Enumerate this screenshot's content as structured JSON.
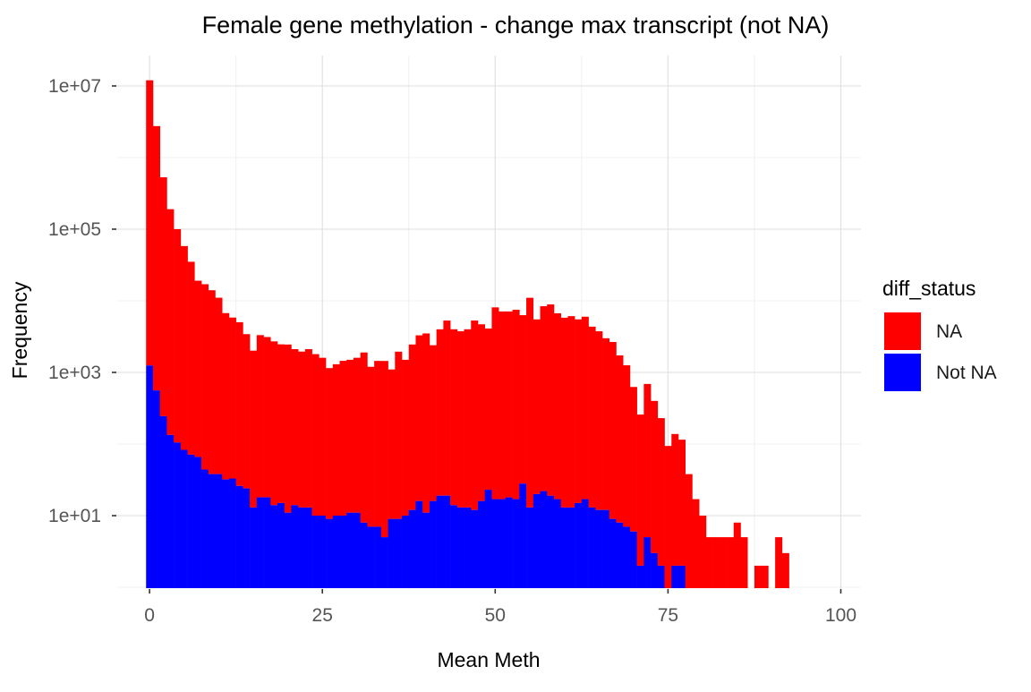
{
  "title": "Female gene methylation - change max transcript (not NA)",
  "axes": {
    "xlabel": "Mean Meth",
    "ylabel": "Frequency",
    "x_tick_labels": [
      "0",
      "25",
      "50",
      "75",
      "100"
    ],
    "y_tick_labels": [
      "1e+01",
      "1e+03",
      "1e+05",
      "1e+07"
    ]
  },
  "legend": {
    "title": "diff_status",
    "items": [
      {
        "label": "NA",
        "color": "#FF0000",
        "swatch_icon": "red-square-swatch"
      },
      {
        "label": "Not NA",
        "color": "#0000FF",
        "swatch_icon": "blue-square-swatch"
      }
    ]
  },
  "colors": {
    "na": "#FF0000",
    "not_na": "#0000FF",
    "grid_major": "#E3E3E3",
    "grid_minor": "#F0F0F0",
    "tick": "#333333",
    "tick_label": "#555555",
    "axis_title": "#000000",
    "plot_title": "#000000",
    "background": "#FFFFFF"
  },
  "chart_data": {
    "type": "bar",
    "subtype": "stacked-histogram",
    "title": "Female gene methylation - change max transcript (not NA)",
    "xlabel": "Mean Meth",
    "ylabel": "Frequency",
    "legend_title": "diff_status",
    "legend_position": "right",
    "grid": true,
    "y_log_scale": true,
    "bin_width": 1,
    "xlim": [
      -2.5,
      103
    ],
    "ylim": [
      1,
      20000000
    ],
    "x_ticks": [
      0,
      25,
      50,
      75,
      100
    ],
    "y_ticks": [
      10,
      1000,
      100000,
      10000000
    ],
    "y_minor_ticks": [
      1,
      100,
      10000,
      1000000
    ],
    "bin_start_x": -0.5,
    "x": [
      0,
      1,
      2,
      3,
      4,
      5,
      6,
      7,
      8,
      9,
      10,
      11,
      12,
      13,
      14,
      15,
      16,
      17,
      18,
      19,
      20,
      21,
      22,
      23,
      24,
      25,
      26,
      27,
      28,
      29,
      30,
      31,
      32,
      33,
      34,
      35,
      36,
      37,
      38,
      39,
      40,
      41,
      42,
      43,
      44,
      45,
      46,
      47,
      48,
      49,
      50,
      51,
      52,
      53,
      54,
      55,
      56,
      57,
      58,
      59,
      60,
      61,
      62,
      63,
      64,
      65,
      66,
      67,
      68,
      69,
      70,
      71,
      72,
      73,
      74,
      75,
      76,
      77,
      78,
      79,
      80,
      81,
      82,
      83,
      84,
      85,
      86,
      87,
      88,
      89,
      90,
      91,
      92
    ],
    "series": [
      {
        "name": "NA",
        "color": "#FF0000",
        "values": [
          12000000,
          2750000,
          530000,
          190000,
          100000,
          58000,
          35000,
          19000,
          17000,
          14000,
          11000,
          6700,
          5800,
          5000,
          3400,
          2000,
          3300,
          3100,
          2700,
          2450,
          2440,
          2100,
          1940,
          2100,
          1790,
          1590,
          1140,
          1290,
          1440,
          1490,
          1590,
          1890,
          1190,
          1440,
          1440,
          1090,
          1940,
          1490,
          2440,
          3280,
          3490,
          2380,
          3980,
          5280,
          3990,
          3740,
          3990,
          5290,
          4680,
          4080,
          8080,
          7080,
          7080,
          7480,
          6270,
          11000,
          5480,
          8380,
          8880,
          6680,
          5790,
          6090,
          5490,
          5980,
          4340,
          3740,
          2990,
          2650,
          1720,
          1250,
          620,
          256,
          685,
          397,
          228,
          94,
          136,
          113,
          38,
          17,
          10,
          5,
          5,
          5,
          5,
          8,
          5,
          0,
          2,
          2,
          0,
          5,
          3
        ]
      },
      {
        "name": "Not NA",
        "color": "#0000FF",
        "values": [
          1250,
          560,
          245,
          134,
          105,
          83,
          71,
          66,
          44,
          38,
          38,
          32,
          33,
          26,
          24,
          13,
          18,
          18,
          14,
          15,
          11,
          14,
          13,
          13,
          10,
          10,
          9,
          10,
          10,
          11,
          11,
          8,
          7,
          7,
          5,
          9,
          9,
          10,
          12,
          16,
          11,
          16,
          19,
          19,
          14,
          13,
          13,
          12,
          16,
          23,
          17,
          17,
          18,
          17,
          28,
          13,
          20,
          22,
          19,
          17,
          13,
          13,
          15,
          17,
          13,
          12,
          12,
          9,
          8,
          7,
          6,
          2,
          5,
          3,
          2,
          0,
          2,
          2,
          0,
          0,
          0,
          0,
          0,
          0,
          0,
          0,
          0,
          0,
          0,
          0,
          0,
          0,
          0
        ]
      }
    ]
  }
}
